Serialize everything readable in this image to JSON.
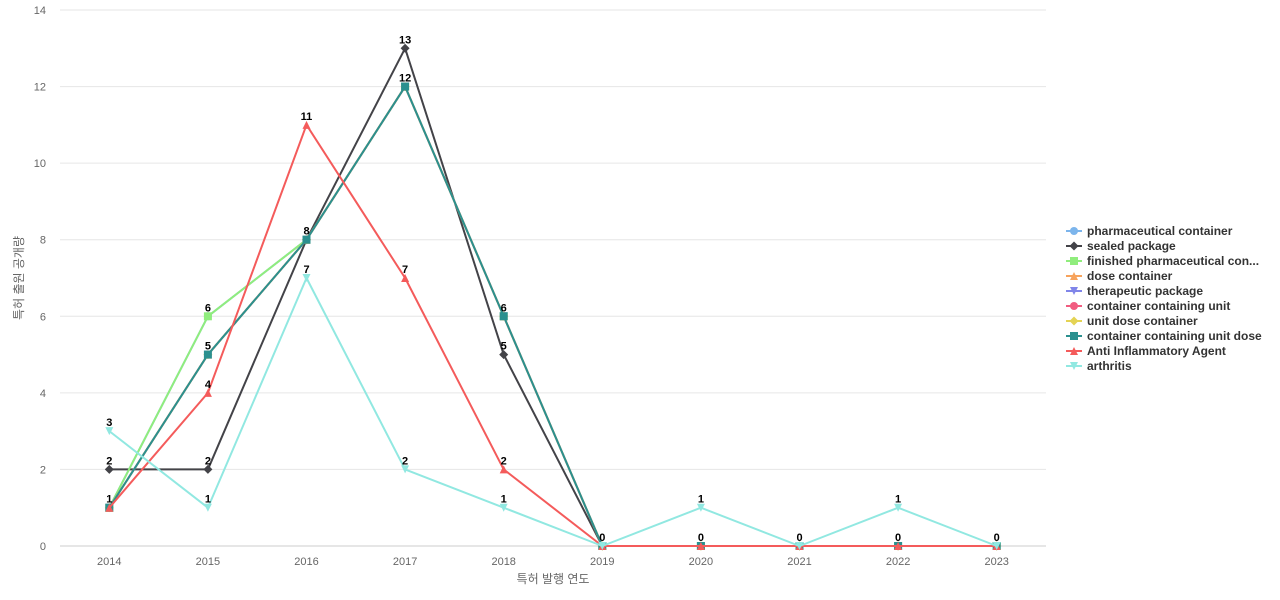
{
  "chart_data": {
    "type": "line",
    "xlabel": "특허 발행 연도",
    "ylabel": "특허 출원 공개량",
    "ylim": [
      0,
      14
    ],
    "yticks": [
      0,
      2,
      4,
      6,
      8,
      10,
      12,
      14
    ],
    "grid": true,
    "legend_position": "right",
    "categories": [
      "2014",
      "2015",
      "2016",
      "2017",
      "2018",
      "2019",
      "2020",
      "2021",
      "2022",
      "2023"
    ],
    "series": [
      {
        "name": "pharmaceutical container",
        "color": "#7cb5ec",
        "marker": "circle",
        "values": [
          1,
          6,
          8,
          12,
          6,
          0,
          0,
          0,
          0,
          0
        ],
        "labels": false
      },
      {
        "name": "sealed package",
        "color": "#434348",
        "marker": "diamond",
        "values": [
          2,
          2,
          8,
          13,
          5,
          0,
          0,
          0,
          0,
          0
        ],
        "labels": true
      },
      {
        "name": "finished pharmaceutical con...",
        "color": "#90ed7d",
        "marker": "square",
        "values": [
          1,
          6,
          8,
          12,
          6,
          0,
          0,
          0,
          0,
          0
        ],
        "labels": false
      },
      {
        "name": "dose container",
        "color": "#f7a35c",
        "marker": "triangle",
        "values": [
          1,
          5,
          8,
          12,
          6,
          0,
          0,
          0,
          0,
          0
        ],
        "labels": false
      },
      {
        "name": "therapeutic package",
        "color": "#8085e9",
        "marker": "triangle-down",
        "values": [
          1,
          5,
          8,
          12,
          6,
          0,
          0,
          0,
          0,
          0
        ],
        "labels": false
      },
      {
        "name": "container containing unit",
        "color": "#f15c80",
        "marker": "circle",
        "values": [
          1,
          5,
          8,
          12,
          6,
          0,
          0,
          0,
          0,
          0
        ],
        "labels": false
      },
      {
        "name": "unit dose container",
        "color": "#e4d354",
        "marker": "diamond",
        "values": [
          1,
          5,
          8,
          12,
          6,
          0,
          0,
          0,
          0,
          0
        ],
        "labels": false
      },
      {
        "name": "container containing unit dose",
        "color": "#2b908f",
        "marker": "square",
        "values": [
          1,
          5,
          8,
          12,
          6,
          0,
          0,
          0,
          0,
          0
        ],
        "labels": false
      },
      {
        "name": "Anti Inflammatory Agent",
        "color": "#f45b5b",
        "marker": "triangle",
        "values": [
          1,
          4,
          11,
          7,
          2,
          0,
          0,
          0,
          0,
          0
        ],
        "labels": false
      },
      {
        "name": "arthritis",
        "color": "#91e8e1",
        "marker": "triangle-down",
        "values": [
          3,
          1,
          7,
          2,
          1,
          0,
          1,
          0,
          1,
          0
        ],
        "labels": false
      }
    ],
    "data_labels": [
      {
        "category": "2014",
        "values": [
          3,
          2,
          1
        ]
      },
      {
        "category": "2015",
        "values": [
          6,
          5,
          4,
          2,
          1
        ]
      },
      {
        "category": "2016",
        "values": [
          11,
          8,
          7
        ]
      },
      {
        "category": "2017",
        "values": [
          13,
          12,
          7,
          2
        ]
      },
      {
        "category": "2018",
        "values": [
          6,
          5,
          2,
          1
        ]
      },
      {
        "category": "2019",
        "values": [
          0
        ]
      },
      {
        "category": "2020",
        "values": [
          1,
          0
        ]
      },
      {
        "category": "2021",
        "values": [
          0
        ]
      },
      {
        "category": "2022",
        "values": [
          1,
          0
        ]
      },
      {
        "category": "2023",
        "values": [
          0
        ]
      }
    ]
  }
}
